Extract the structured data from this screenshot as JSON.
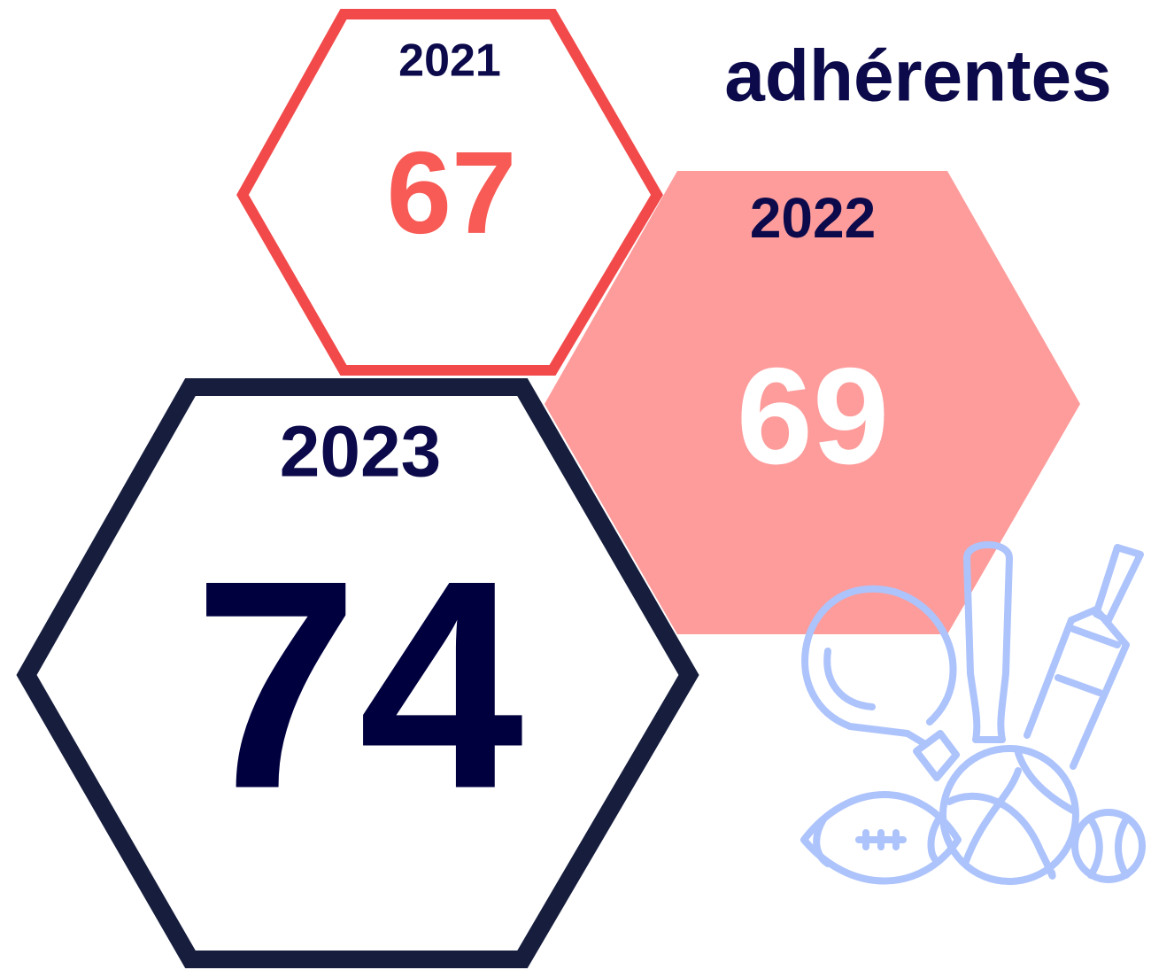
{
  "title": "adhérentes",
  "items": [
    {
      "year": "2021",
      "value": 67
    },
    {
      "year": "2022",
      "value": 69
    },
    {
      "year": "2023",
      "value": 74
    }
  ]
}
